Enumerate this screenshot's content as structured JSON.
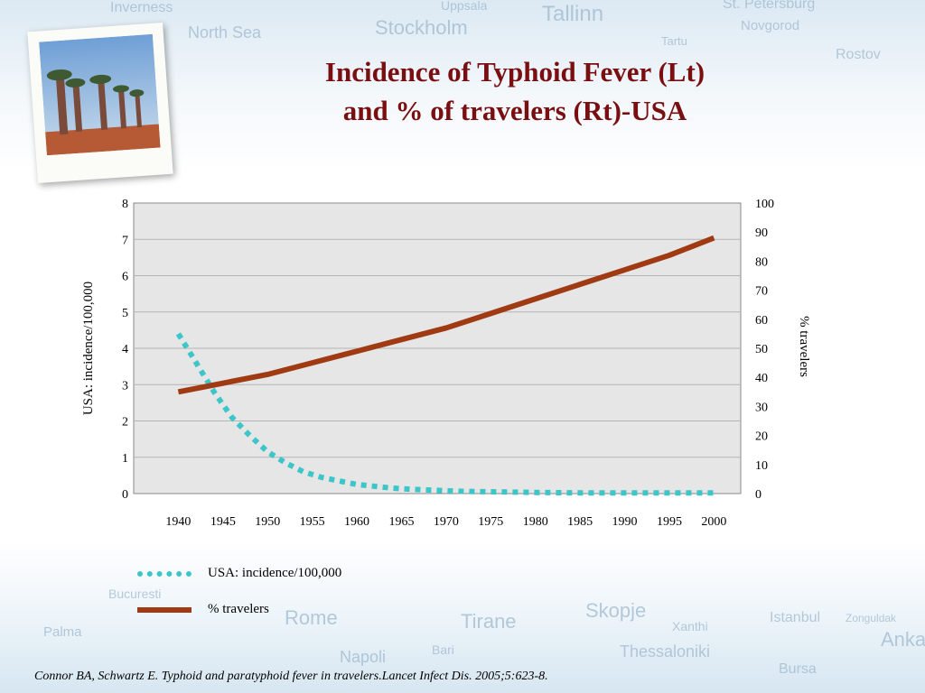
{
  "background_labels": [
    "Inverness",
    "North Sea",
    "Stockholm",
    "Uppsala",
    "Tallinn",
    "St. Petersburg",
    "Novgorod",
    "Tartu",
    "Rostov",
    "Palma",
    "Rome",
    "Tirane",
    "Skopje",
    "Napoli",
    "Bari",
    "Thessaloniki",
    "Bursa",
    "Istanbul",
    "Zonguldak",
    "Ankara",
    "Xanthi",
    "Bucuresti"
  ],
  "title": {
    "line1": "Incidence of Typhoid Fever (Lt)",
    "line2": "and % of travelers (Rt)-USA"
  },
  "legend": {
    "incidence": "USA: incidence/100,000",
    "travelers": "% travelers"
  },
  "citation": "Connor BA, Schwartz E. Typhoid and paratyphoid fever in travelers.Lancet Infect Dis. 2005;5:623-8.",
  "colors": {
    "title": "#7a0f12",
    "incidence": "#3cc6c9",
    "travelers": "#a03a12",
    "plot_bg": "#e6e6e6",
    "grid": "#b4b4b4"
  },
  "chart_data": {
    "type": "line",
    "title": "Incidence of Typhoid Fever (Lt) and % of travelers (Rt)-USA",
    "xlabel": "",
    "ylabel_left": "USA: incidence/100,000",
    "ylabel_right": "% travelers",
    "x_ticks": [
      "1940",
      "1945",
      "1950",
      "1955",
      "1960",
      "1965",
      "1970",
      "1975",
      "1980",
      "1985",
      "1990",
      "1995",
      "2000"
    ],
    "xlim": [
      1940,
      2000
    ],
    "ylim_left": [
      0,
      8
    ],
    "y_ticks_left": [
      "0",
      "1",
      "2",
      "3",
      "4",
      "5",
      "6",
      "7",
      "8"
    ],
    "ylim_right": [
      0,
      100
    ],
    "y_ticks_right": [
      "0",
      "10",
      "20",
      "30",
      "40",
      "50",
      "60",
      "70",
      "80",
      "90",
      "100"
    ],
    "grid": true,
    "legend_position": "bottom-left",
    "series": [
      {
        "name": "USA: incidence/100,000",
        "axis": "left",
        "style": "dotted",
        "x": [
          1940,
          1942,
          1944,
          1946,
          1948,
          1950,
          1952,
          1954,
          1956,
          1958,
          1960,
          1962,
          1964,
          1966,
          1968,
          1970,
          1972,
          1975,
          1978,
          1980,
          1985,
          1990,
          1995,
          2000
        ],
        "values": [
          4.4,
          3.6,
          2.8,
          2.1,
          1.6,
          1.15,
          0.85,
          0.6,
          0.45,
          0.35,
          0.25,
          0.2,
          0.15,
          0.12,
          0.1,
          0.08,
          0.06,
          0.05,
          0.04,
          0.03,
          0.02,
          0.02,
          0.02,
          0.02
        ]
      },
      {
        "name": "% travelers",
        "axis": "right",
        "style": "solid",
        "x": [
          1940,
          1945,
          1950,
          1955,
          1960,
          1965,
          1970,
          1975,
          1980,
          1985,
          1990,
          1995,
          2000
        ],
        "values": [
          35,
          38,
          41,
          45,
          49,
          53,
          57,
          62,
          67,
          72,
          77,
          82,
          88
        ]
      }
    ]
  }
}
